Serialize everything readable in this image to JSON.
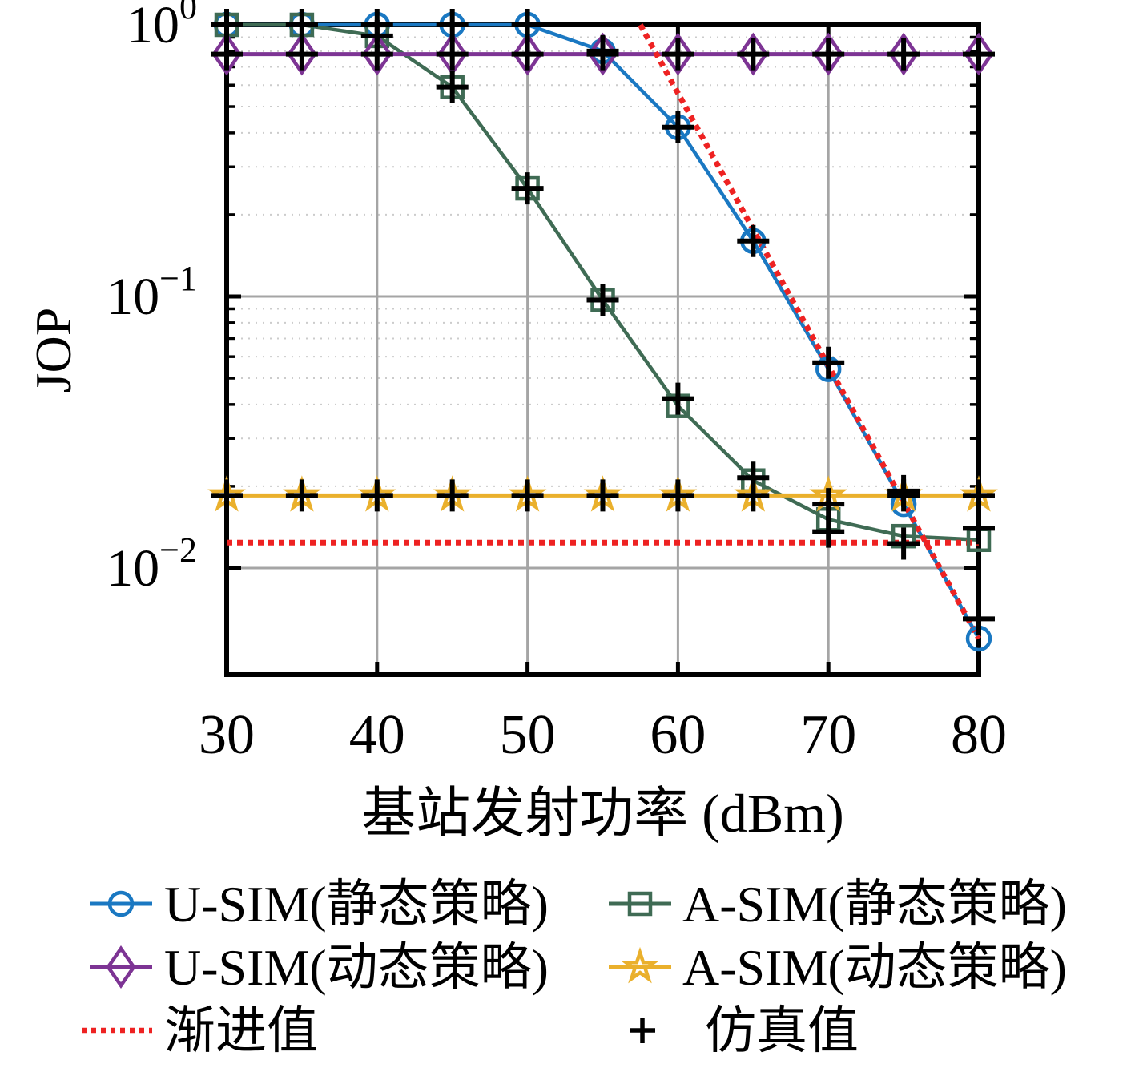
{
  "figure": {
    "background": "#ffffff"
  },
  "chart_data": {
    "type": "line",
    "title": "",
    "xlabel": "基站发射功率 (dBm)",
    "ylabel": "JOP",
    "xlim": [
      30,
      80
    ],
    "x_ticks": [
      30,
      40,
      50,
      60,
      70,
      80
    ],
    "x_tick_labels": [
      "30",
      "40",
      "50",
      "60",
      "70",
      "80"
    ],
    "yscale": "log",
    "ylim": [
      0.00405,
      1.0
    ],
    "y_tick_labels": [
      {
        "base": "10",
        "exp": "0",
        "value": 1
      },
      {
        "base": "10",
        "exp": "−1",
        "value": 0.1
      },
      {
        "base": "10",
        "exp": "−2",
        "value": 0.01
      }
    ],
    "grid": {
      "major_x": [
        40,
        50,
        60,
        70
      ],
      "major_y": [
        0.1,
        0.01
      ],
      "minor_y_decades": [
        0,
        -1,
        -2
      ]
    },
    "x": [
      30,
      35,
      40,
      45,
      50,
      55,
      60,
      65,
      70,
      75,
      80
    ],
    "series": [
      {
        "id": "u-sim-static",
        "name": "U-SIM(静态策略)",
        "color": "#1a78c2",
        "marker": "circle",
        "values": [
          1.0,
          1.0,
          1.0,
          1.0,
          1.0,
          0.8,
          0.42,
          0.16,
          0.054,
          0.0172,
          0.0055
        ],
        "sim_values": [
          1.0,
          1.0,
          1.0,
          1.0,
          1.0,
          0.8,
          0.42,
          0.16,
          0.057,
          0.0192,
          0.0065
        ]
      },
      {
        "id": "a-sim-static",
        "name": "A-SIM(静态策略)",
        "color": "#3f6b54",
        "marker": "square",
        "values": [
          1.0,
          1.0,
          0.91,
          0.59,
          0.25,
          0.097,
          0.0395,
          0.021,
          0.0151,
          0.0131,
          0.0127
        ],
        "sim_values": [
          1.0,
          1.0,
          0.91,
          0.59,
          0.25,
          0.097,
          0.042,
          0.0215,
          0.0136,
          0.0123,
          0.014
        ]
      },
      {
        "id": "u-sim-dynamic",
        "name": "U-SIM(动态策略)",
        "color": "#7d3494",
        "marker": "diamond",
        "values": [
          0.78,
          0.78,
          0.78,
          0.78,
          0.78,
          0.78,
          0.78,
          0.78,
          0.78,
          0.78,
          0.78
        ],
        "sim_values": [
          0.78,
          0.78,
          0.78,
          0.78,
          0.78,
          0.78,
          0.78,
          0.78,
          0.78,
          0.78,
          0.78
        ]
      },
      {
        "id": "a-sim-dynamic",
        "name": "A-SIM(动态策略)",
        "color": "#eab02c",
        "marker": "star",
        "values": [
          0.0185,
          0.0185,
          0.0185,
          0.0185,
          0.0185,
          0.0185,
          0.0185,
          0.0185,
          0.0185,
          0.0185,
          0.0185
        ],
        "sim_values": [
          0.0185,
          0.0185,
          0.0185,
          0.0185,
          0.0185,
          0.0185,
          0.0185,
          0.0185,
          0.0172,
          0.0185,
          0.0185
        ]
      }
    ],
    "asymptote": {
      "label": "渐进值",
      "color": "#ee2222",
      "style": "dotted",
      "lines": [
        {
          "x": [
            57.5,
            80
          ],
          "values": [
            1.0,
            0.0055
          ]
        },
        {
          "x": [
            30,
            80
          ],
          "values": [
            0.0124,
            0.0124
          ]
        }
      ]
    },
    "simulation": {
      "label": "仿真值",
      "marker": "plus",
      "color": "#000000"
    }
  },
  "legend": {
    "columns": [
      [
        {
          "label": "U-SIM(静态策略)",
          "series": "u-sim-static"
        },
        {
          "label": "U-SIM(动态策略)",
          "series": "u-sim-dynamic"
        },
        {
          "label": "渐进值",
          "series": "asymptote"
        }
      ],
      [
        {
          "label": "A-SIM(静态策略)",
          "series": "a-sim-static"
        },
        {
          "label": "A-SIM(动态策略)",
          "series": "a-sim-dynamic"
        },
        {
          "label": "仿真值",
          "series": "simulation"
        }
      ]
    ]
  }
}
